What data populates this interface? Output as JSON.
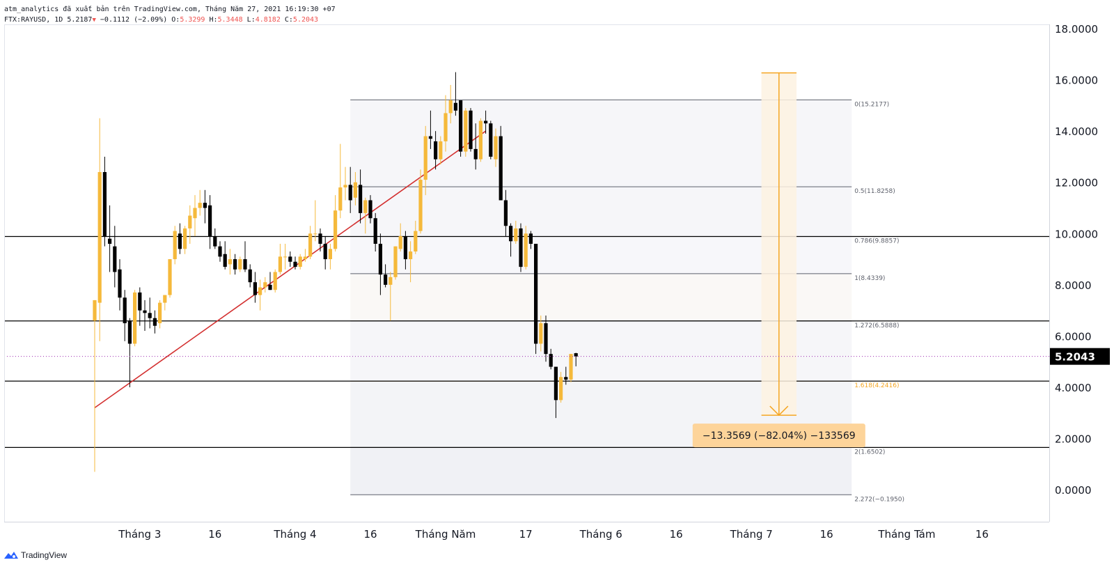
{
  "header": {
    "line1": "atm_analytics đã xuất bản trên TradingView.com, Tháng Năm 27, 2021 16:19:30 +07",
    "symbol": "FTX:RAYUSD, 1D",
    "last": "5.2187",
    "change": "−0.1112 (−2.09%)",
    "o_label": "O:",
    "o_value": "5.3299",
    "h_label": "H:",
    "h_value": "5.3448",
    "l_label": "L:",
    "l_value": "4.8182",
    "c_label": "C:",
    "c_value": "5.2043"
  },
  "brand": {
    "name": "TradingView"
  },
  "colors": {
    "up": "#f5b93b",
    "down": "#000000",
    "trendline": "#d32f2f",
    "measure": "#f5a623",
    "measure_label_bg": "#fdd49a",
    "fib_shade": "#f0f1f5",
    "axis_text": "#131722",
    "fib_1618": "#f5a623"
  },
  "chart_data": {
    "type": "candlestick",
    "symbol": "FTX:RAYUSD",
    "interval": "1D",
    "ylim": [
      -0.8,
      18.2
    ],
    "y_ticks": [
      "18.0000",
      "16.0000",
      "14.0000",
      "12.0000",
      "10.0000",
      "8.0000",
      "6.0000",
      "4.0000",
      "2.0000",
      "0.0000"
    ],
    "x_ticks": [
      "Tháng 3",
      "16",
      "Tháng 4",
      "16",
      "Tháng Năm",
      "17",
      "Tháng 6",
      "16",
      "Tháng 7",
      "16",
      "Tháng Tám",
      "16"
    ],
    "last_price": "5.2043",
    "candles": [
      {
        "date": "2021-02-20",
        "o": 6.6,
        "h": 7.4,
        "l": 0.7,
        "c": 7.4
      },
      {
        "date": "2021-02-21",
        "o": 7.3,
        "h": 14.5,
        "l": 5.8,
        "c": 12.4
      },
      {
        "date": "2021-02-22",
        "o": 12.4,
        "h": 13.0,
        "l": 9.5,
        "c": 9.9
      },
      {
        "date": "2021-02-23",
        "o": 9.8,
        "h": 11.1,
        "l": 8.5,
        "c": 9.6
      },
      {
        "date": "2021-02-24",
        "o": 9.5,
        "h": 10.3,
        "l": 7.9,
        "c": 8.5
      },
      {
        "date": "2021-02-25",
        "o": 8.6,
        "h": 9.0,
        "l": 7.0,
        "c": 7.5
      },
      {
        "date": "2021-02-26",
        "o": 7.5,
        "h": 7.8,
        "l": 5.8,
        "c": 6.5
      },
      {
        "date": "2021-02-27",
        "o": 6.6,
        "h": 6.7,
        "l": 4.0,
        "c": 5.7
      },
      {
        "date": "2021-02-28",
        "o": 5.7,
        "h": 7.8,
        "l": 5.6,
        "c": 7.7
      },
      {
        "date": "2021-03-01",
        "o": 7.7,
        "h": 7.9,
        "l": 6.4,
        "c": 7.0
      },
      {
        "date": "2021-03-02",
        "o": 7.0,
        "h": 7.4,
        "l": 6.2,
        "c": 6.9
      },
      {
        "date": "2021-03-03",
        "o": 6.9,
        "h": 7.5,
        "l": 6.3,
        "c": 6.7
      },
      {
        "date": "2021-03-04",
        "o": 6.7,
        "h": 7.0,
        "l": 6.1,
        "c": 6.4
      },
      {
        "date": "2021-03-05",
        "o": 6.5,
        "h": 7.4,
        "l": 6.3,
        "c": 7.3
      },
      {
        "date": "2021-03-06",
        "o": 7.3,
        "h": 7.6,
        "l": 7.0,
        "c": 7.6
      },
      {
        "date": "2021-03-07",
        "o": 7.6,
        "h": 9.0,
        "l": 7.5,
        "c": 9.0
      },
      {
        "date": "2021-03-08",
        "o": 9.0,
        "h": 10.3,
        "l": 8.8,
        "c": 10.1
      },
      {
        "date": "2021-03-09",
        "o": 10.0,
        "h": 10.4,
        "l": 9.2,
        "c": 9.4
      },
      {
        "date": "2021-03-10",
        "o": 9.4,
        "h": 10.3,
        "l": 9.2,
        "c": 10.2
      },
      {
        "date": "2021-03-11",
        "o": 10.2,
        "h": 11.1,
        "l": 9.6,
        "c": 10.7
      },
      {
        "date": "2021-03-12",
        "o": 10.6,
        "h": 11.5,
        "l": 9.9,
        "c": 11.0
      },
      {
        "date": "2021-03-13",
        "o": 11.0,
        "h": 11.7,
        "l": 10.7,
        "c": 11.2
      },
      {
        "date": "2021-03-14",
        "o": 11.2,
        "h": 11.7,
        "l": 10.4,
        "c": 11.0
      },
      {
        "date": "2021-03-15",
        "o": 11.1,
        "h": 11.5,
        "l": 9.4,
        "c": 9.9
      },
      {
        "date": "2021-03-16",
        "o": 9.9,
        "h": 10.2,
        "l": 9.4,
        "c": 9.5
      },
      {
        "date": "2021-03-17",
        "o": 9.5,
        "h": 9.7,
        "l": 8.9,
        "c": 9.1
      },
      {
        "date": "2021-03-18",
        "o": 9.2,
        "h": 9.7,
        "l": 8.6,
        "c": 8.7
      },
      {
        "date": "2021-03-19",
        "o": 8.8,
        "h": 9.4,
        "l": 8.4,
        "c": 9.0
      },
      {
        "date": "2021-03-20",
        "o": 9.0,
        "h": 9.2,
        "l": 8.4,
        "c": 8.6
      },
      {
        "date": "2021-03-21",
        "o": 8.6,
        "h": 9.1,
        "l": 8.5,
        "c": 9.0
      },
      {
        "date": "2021-03-22",
        "o": 9.0,
        "h": 9.7,
        "l": 8.5,
        "c": 8.6
      },
      {
        "date": "2021-03-23",
        "o": 8.6,
        "h": 8.8,
        "l": 7.9,
        "c": 8.1
      },
      {
        "date": "2021-03-24",
        "o": 8.1,
        "h": 8.5,
        "l": 7.3,
        "c": 7.6
      },
      {
        "date": "2021-03-25",
        "o": 7.6,
        "h": 8.2,
        "l": 7.0,
        "c": 7.9
      },
      {
        "date": "2021-03-26",
        "o": 7.9,
        "h": 8.3,
        "l": 7.7,
        "c": 8.1
      },
      {
        "date": "2021-03-27",
        "o": 8.0,
        "h": 8.5,
        "l": 7.8,
        "c": 7.8
      },
      {
        "date": "2021-03-28",
        "o": 7.8,
        "h": 8.6,
        "l": 7.7,
        "c": 8.5
      },
      {
        "date": "2021-03-29",
        "o": 8.5,
        "h": 9.6,
        "l": 8.4,
        "c": 9.1
      },
      {
        "date": "2021-03-30",
        "o": 9.1,
        "h": 9.6,
        "l": 8.6,
        "c": 9.1
      },
      {
        "date": "2021-03-31",
        "o": 9.1,
        "h": 9.3,
        "l": 8.7,
        "c": 8.9
      },
      {
        "date": "2021-04-01",
        "o": 8.9,
        "h": 9.1,
        "l": 8.6,
        "c": 8.7
      },
      {
        "date": "2021-04-02",
        "o": 8.7,
        "h": 9.2,
        "l": 8.6,
        "c": 9.1
      },
      {
        "date": "2021-04-03",
        "o": 9.0,
        "h": 9.4,
        "l": 8.9,
        "c": 9.1
      },
      {
        "date": "2021-04-04",
        "o": 9.1,
        "h": 10.3,
        "l": 9.0,
        "c": 10.0
      },
      {
        "date": "2021-04-05",
        "o": 10.0,
        "h": 11.3,
        "l": 9.7,
        "c": 10.0
      },
      {
        "date": "2021-04-06",
        "o": 10.0,
        "h": 10.2,
        "l": 9.3,
        "c": 9.6
      },
      {
        "date": "2021-04-07",
        "o": 9.6,
        "h": 9.9,
        "l": 8.6,
        "c": 9.0
      },
      {
        "date": "2021-04-08",
        "o": 9.0,
        "h": 9.6,
        "l": 8.6,
        "c": 9.4
      },
      {
        "date": "2021-04-09",
        "o": 9.4,
        "h": 11.5,
        "l": 9.3,
        "c": 10.9
      },
      {
        "date": "2021-04-10",
        "o": 10.9,
        "h": 13.5,
        "l": 10.6,
        "c": 11.8
      },
      {
        "date": "2021-04-11",
        "o": 11.8,
        "h": 12.6,
        "l": 11.3,
        "c": 11.9
      },
      {
        "date": "2021-04-12",
        "o": 11.9,
        "h": 12.6,
        "l": 10.8,
        "c": 11.3
      },
      {
        "date": "2021-04-13",
        "o": 11.4,
        "h": 12.4,
        "l": 11.1,
        "c": 12.0
      },
      {
        "date": "2021-04-14",
        "o": 11.9,
        "h": 12.5,
        "l": 10.4,
        "c": 10.8
      },
      {
        "date": "2021-04-15",
        "o": 10.8,
        "h": 11.4,
        "l": 10.0,
        "c": 11.3
      },
      {
        "date": "2021-04-16",
        "o": 11.3,
        "h": 11.5,
        "l": 10.4,
        "c": 10.6
      },
      {
        "date": "2021-04-17",
        "o": 10.6,
        "h": 10.8,
        "l": 9.3,
        "c": 9.6
      },
      {
        "date": "2021-04-18",
        "o": 9.6,
        "h": 10.0,
        "l": 7.6,
        "c": 8.4
      },
      {
        "date": "2021-04-19",
        "o": 8.4,
        "h": 8.8,
        "l": 7.9,
        "c": 8.0
      },
      {
        "date": "2021-04-20",
        "o": 8.0,
        "h": 8.5,
        "l": 6.6,
        "c": 8.3
      },
      {
        "date": "2021-04-21",
        "o": 8.3,
        "h": 9.5,
        "l": 8.2,
        "c": 9.5
      },
      {
        "date": "2021-04-22",
        "o": 9.4,
        "h": 10.4,
        "l": 9.3,
        "c": 9.9
      },
      {
        "date": "2021-04-23",
        "o": 9.9,
        "h": 10.1,
        "l": 8.6,
        "c": 9.0
      },
      {
        "date": "2021-04-24",
        "o": 9.0,
        "h": 9.7,
        "l": 8.1,
        "c": 9.3
      },
      {
        "date": "2021-04-25",
        "o": 9.3,
        "h": 10.5,
        "l": 9.2,
        "c": 10.1
      },
      {
        "date": "2021-04-26",
        "o": 10.1,
        "h": 12.5,
        "l": 10.0,
        "c": 12.1
      },
      {
        "date": "2021-04-27",
        "o": 12.1,
        "h": 14.2,
        "l": 11.5,
        "c": 13.8
      },
      {
        "date": "2021-04-28",
        "o": 13.8,
        "h": 14.8,
        "l": 13.3,
        "c": 13.7
      },
      {
        "date": "2021-04-29",
        "o": 13.6,
        "h": 14.0,
        "l": 12.5,
        "c": 12.9
      },
      {
        "date": "2021-04-30",
        "o": 12.9,
        "h": 13.8,
        "l": 12.7,
        "c": 13.6
      },
      {
        "date": "2021-05-01",
        "o": 13.6,
        "h": 15.4,
        "l": 13.2,
        "c": 14.7
      },
      {
        "date": "2021-05-02",
        "o": 14.7,
        "h": 15.8,
        "l": 14.3,
        "c": 15.2
      },
      {
        "date": "2021-05-03",
        "o": 15.1,
        "h": 16.3,
        "l": 14.6,
        "c": 14.8
      },
      {
        "date": "2021-05-04",
        "o": 15.2,
        "h": 15.2,
        "l": 13.0,
        "c": 13.2
      },
      {
        "date": "2021-05-05",
        "o": 13.2,
        "h": 14.9,
        "l": 13.0,
        "c": 14.8
      },
      {
        "date": "2021-05-06",
        "o": 14.8,
        "h": 14.9,
        "l": 13.2,
        "c": 13.3
      },
      {
        "date": "2021-05-07",
        "o": 13.3,
        "h": 14.3,
        "l": 12.5,
        "c": 12.9
      },
      {
        "date": "2021-05-08",
        "o": 12.9,
        "h": 14.5,
        "l": 12.8,
        "c": 14.4
      },
      {
        "date": "2021-05-09",
        "o": 14.4,
        "h": 14.8,
        "l": 13.9,
        "c": 14.3
      },
      {
        "date": "2021-05-10",
        "o": 14.3,
        "h": 14.4,
        "l": 12.9,
        "c": 13.0
      },
      {
        "date": "2021-05-11",
        "o": 12.9,
        "h": 14.1,
        "l": 12.6,
        "c": 13.8
      },
      {
        "date": "2021-05-12",
        "o": 13.8,
        "h": 14.2,
        "l": 11.3,
        "c": 11.3
      },
      {
        "date": "2021-05-13",
        "o": 11.3,
        "h": 11.7,
        "l": 9.9,
        "c": 10.3
      },
      {
        "date": "2021-05-14",
        "o": 10.3,
        "h": 10.4,
        "l": 9.1,
        "c": 9.7
      },
      {
        "date": "2021-05-15",
        "o": 9.7,
        "h": 10.5,
        "l": 9.6,
        "c": 10.2
      },
      {
        "date": "2021-05-16",
        "o": 10.2,
        "h": 10.4,
        "l": 8.5,
        "c": 8.7
      },
      {
        "date": "2021-05-17",
        "o": 8.7,
        "h": 10.3,
        "l": 8.6,
        "c": 10.0
      },
      {
        "date": "2021-05-18",
        "o": 10.0,
        "h": 10.1,
        "l": 9.4,
        "c": 9.6
      },
      {
        "date": "2021-05-19",
        "o": 9.6,
        "h": 9.6,
        "l": 5.3,
        "c": 5.7
      },
      {
        "date": "2021-05-20",
        "o": 5.7,
        "h": 6.8,
        "l": 5.4,
        "c": 6.5
      },
      {
        "date": "2021-05-21",
        "o": 6.5,
        "h": 6.8,
        "l": 5.0,
        "c": 5.3
      },
      {
        "date": "2021-05-22",
        "o": 5.3,
        "h": 5.5,
        "l": 4.7,
        "c": 4.8
      },
      {
        "date": "2021-05-23",
        "o": 4.8,
        "h": 4.8,
        "l": 2.8,
        "c": 3.5
      },
      {
        "date": "2021-05-24",
        "o": 3.5,
        "h": 4.6,
        "l": 3.4,
        "c": 4.4
      },
      {
        "date": "2021-05-25",
        "o": 4.4,
        "h": 4.8,
        "l": 4.1,
        "c": 4.3
      },
      {
        "date": "2021-05-26",
        "o": 4.3,
        "h": 5.3,
        "l": 4.2,
        "c": 5.3
      },
      {
        "date": "2021-05-27",
        "o": 5.3299,
        "h": 5.3448,
        "l": 4.8182,
        "c": 5.2043
      }
    ],
    "fibonacci": {
      "levels": [
        {
          "label": "0(15.2177)",
          "value": 15.2177
        },
        {
          "label": "0.5(11.8258)",
          "value": 11.8258
        },
        {
          "label": "0.786(9.8857)",
          "value": 9.8857
        },
        {
          "label": "1(8.4339)",
          "value": 8.4339
        },
        {
          "label": "1.272(6.5888)",
          "value": 6.5888
        },
        {
          "label": "1.618(4.2416)",
          "value": 4.2416
        },
        {
          "label": "2(1.6502)",
          "value": 1.6502
        },
        {
          "label": "2.272(−0.1950)",
          "value": -0.195
        }
      ],
      "start_date": "2021-04-12",
      "end_date": "2021-07-21"
    },
    "horizontal_lines": [
      9.8857,
      6.5888,
      4.2416,
      1.6502
    ],
    "trendline": {
      "start": {
        "date": "2021-02-20",
        "price": 3.2
      },
      "end": {
        "date": "2021-05-09",
        "price": 14.0
      }
    },
    "measure": {
      "start_date": "2021-07-03",
      "end_date": "2021-07-10",
      "from_price": 16.27,
      "to_price": 2.91,
      "label": "−13.3569 (−82.04%) −133569"
    }
  }
}
